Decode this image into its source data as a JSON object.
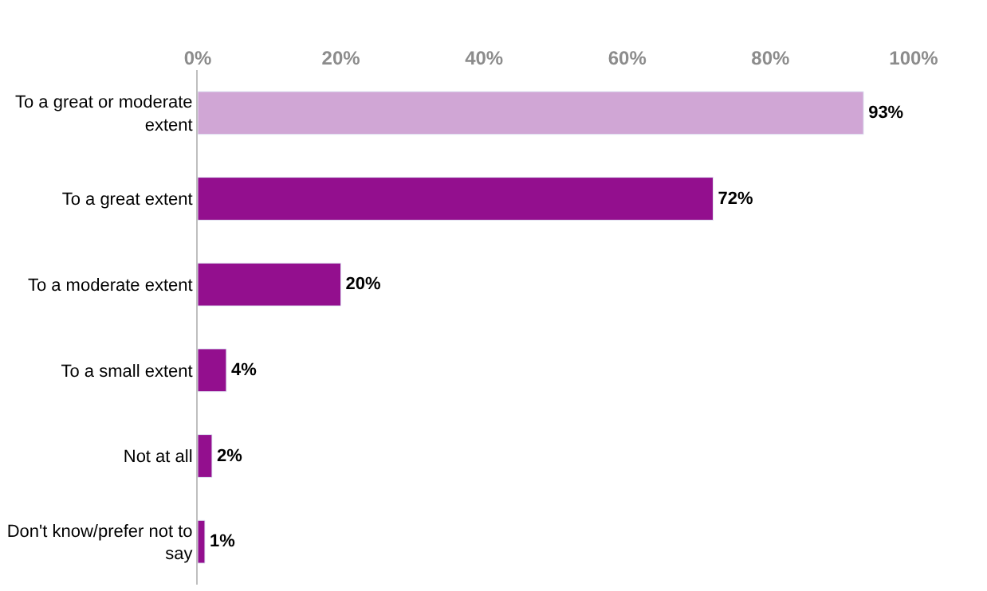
{
  "chart_data": {
    "type": "bar",
    "orientation": "horizontal",
    "categories": [
      "To a great or moderate extent",
      "To a great extent",
      "To a moderate extent",
      "To a small extent",
      "Not at all",
      "Don't know/prefer not to say"
    ],
    "values": [
      93,
      72,
      20,
      4,
      2,
      1
    ],
    "colors": [
      "#d0a6d5",
      "#930f8e",
      "#930f8e",
      "#930f8e",
      "#930f8e",
      "#930f8e"
    ],
    "value_labels": [
      "93%",
      "72%",
      "20%",
      "4%",
      "2%",
      "1%"
    ],
    "xlim": [
      0,
      100
    ],
    "xticks": [
      {
        "value": 0,
        "label": "0%"
      },
      {
        "value": 20,
        "label": "20%"
      },
      {
        "value": 40,
        "label": "40%"
      },
      {
        "value": 60,
        "label": "60%"
      },
      {
        "value": 80,
        "label": "80%"
      },
      {
        "value": 100,
        "label": "100%"
      }
    ],
    "legend": false
  }
}
